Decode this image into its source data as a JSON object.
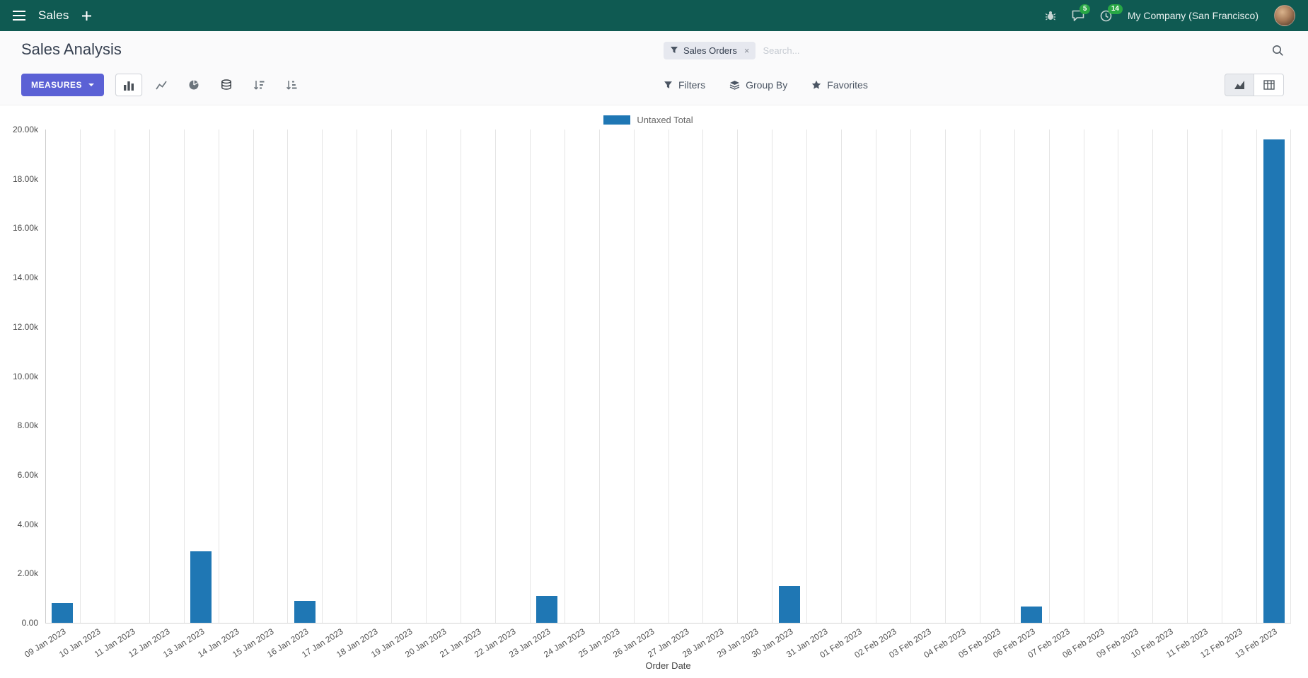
{
  "colors": {
    "navbar_bg": "#0f5a52",
    "primary_button": "#5b61d5",
    "badge_green": "#28a745",
    "series": "#1f77b4"
  },
  "navbar": {
    "app_name": "Sales",
    "messages_badge": "5",
    "activities_badge": "14",
    "company": "My Company (San Francisco)"
  },
  "control_panel": {
    "breadcrumb_title": "Sales Analysis",
    "measures_label": "MEASURES",
    "search_facet": "Sales Orders",
    "search_facet_remove": "×",
    "search_placeholder": "Search...",
    "filters_label": "Filters",
    "group_by_label": "Group By",
    "favorites_label": "Favorites"
  },
  "chart_data": {
    "type": "bar",
    "title": "",
    "legend_label": "Untaxed Total",
    "legend_position": "top-center",
    "xlabel": "Order Date",
    "ylabel": "",
    "ylim": [
      0,
      20000
    ],
    "grid": "vertical-only",
    "series_color": "#1f77b4",
    "y_ticks": [
      "20.00k",
      "18.00k",
      "16.00k",
      "14.00k",
      "12.00k",
      "10.00k",
      "8.00k",
      "6.00k",
      "4.00k",
      "2.00k",
      "0.00"
    ],
    "categories": [
      "09 Jan 2023",
      "10 Jan 2023",
      "11 Jan 2023",
      "12 Jan 2023",
      "13 Jan 2023",
      "14 Jan 2023",
      "15 Jan 2023",
      "16 Jan 2023",
      "17 Jan 2023",
      "18 Jan 2023",
      "19 Jan 2023",
      "20 Jan 2023",
      "21 Jan 2023",
      "22 Jan 2023",
      "23 Jan 2023",
      "24 Jan 2023",
      "25 Jan 2023",
      "26 Jan 2023",
      "27 Jan 2023",
      "28 Jan 2023",
      "29 Jan 2023",
      "30 Jan 2023",
      "31 Jan 2023",
      "01 Feb 2023",
      "02 Feb 2023",
      "03 Feb 2023",
      "04 Feb 2023",
      "05 Feb 2023",
      "06 Feb 2023",
      "07 Feb 2023",
      "08 Feb 2023",
      "09 Feb 2023",
      "10 Feb 2023",
      "11 Feb 2023",
      "12 Feb 2023",
      "13 Feb 2023"
    ],
    "values": [
      800,
      0,
      0,
      0,
      2900,
      0,
      0,
      900,
      0,
      0,
      0,
      0,
      0,
      0,
      1100,
      0,
      0,
      0,
      0,
      0,
      0,
      1500,
      0,
      0,
      0,
      0,
      0,
      0,
      650,
      0,
      0,
      0,
      0,
      0,
      0,
      19600
    ]
  }
}
